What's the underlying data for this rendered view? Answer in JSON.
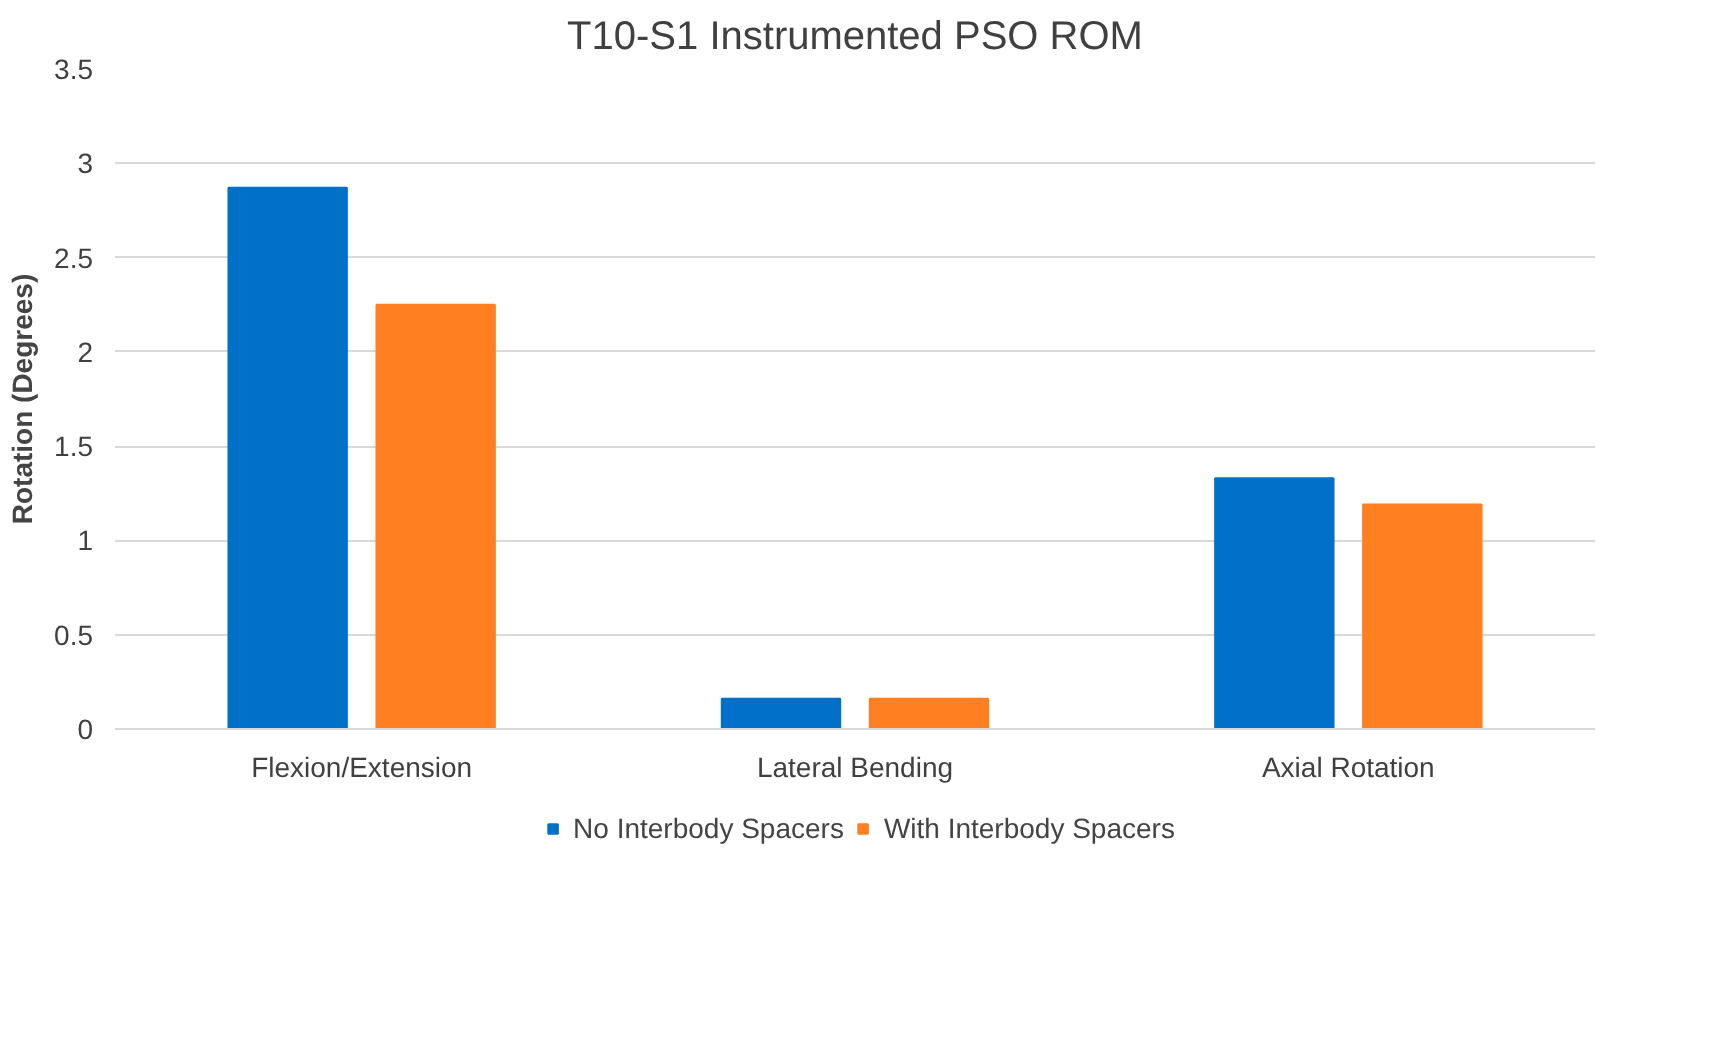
{
  "chart_data": {
    "type": "bar",
    "title": "T10-S1 Instrumented PSO ROM",
    "ylabel": "Rotation (Degrees)",
    "categories": [
      "Flexion/Extension",
      "Lateral Bending",
      "Axial Rotation"
    ],
    "series": [
      {
        "name": "No Interbody Spacers",
        "color": "#0070c9",
        "values": [
          2.87,
          0.16,
          1.33
        ]
      },
      {
        "name": "With Interbody Spacers",
        "color": "#ff7f21",
        "values": [
          2.25,
          0.16,
          1.19
        ]
      }
    ],
    "ylim": [
      0,
      3.5
    ],
    "yticks": [
      0,
      0.5,
      1,
      1.5,
      2,
      2.5,
      3,
      3.5
    ],
    "grid": "y",
    "legend": "bottom"
  }
}
